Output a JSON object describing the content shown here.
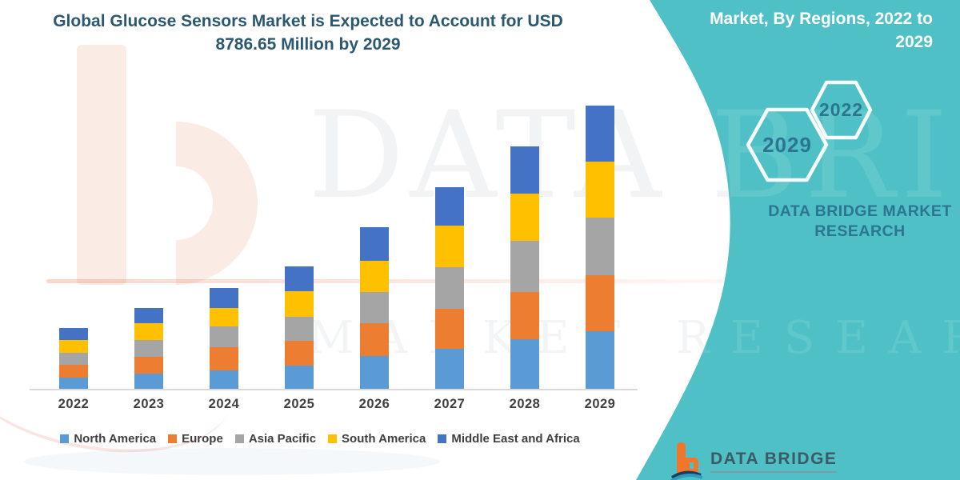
{
  "header": {
    "title_line1": "Global Glucose Sensors Market is Expected to Account for USD",
    "title_line2": "8786.65 Million by 2029"
  },
  "side_panel": {
    "heading": "Market, By Regions, 2022 to 2029",
    "hex_top": "2022",
    "hex_bottom": "2029",
    "brand": "DATA BRIDGE MARKET RESEARCH"
  },
  "watermark": {
    "brand": "DATA BRIDGE",
    "sub": "MARKET RESEARCH"
  },
  "footer": {
    "brand": "DATA BRIDGE"
  },
  "colors": {
    "band": "#4FC1C6",
    "band_text": "#2C7590",
    "title_text": "#2B5871",
    "axis_label": "#3F3F3F",
    "axis_line": "#D9D9D9",
    "logo_orange": "#F0762B"
  },
  "chart_data": {
    "type": "bar",
    "stacked": true,
    "unit": "USD Million",
    "grid": false,
    "legend_position": "bottom",
    "categories": [
      "2022",
      "2023",
      "2024",
      "2025",
      "2026",
      "2027",
      "2028",
      "2029"
    ],
    "series": [
      {
        "name": "North America",
        "color": "#5B9BD5",
        "values": [
          380,
          500,
          600,
          750,
          1050,
          1250,
          1570,
          1797.65
        ]
      },
      {
        "name": "Europe",
        "color": "#ED7D31",
        "values": [
          375,
          525,
          700,
          750,
          1000,
          1250,
          1450,
          1747
        ]
      },
      {
        "name": "Asia Pacific",
        "color": "#A5A5A5",
        "values": [
          375,
          500,
          650,
          750,
          975,
          1270,
          1570,
          1772
        ]
      },
      {
        "name": "South America",
        "color": "#FFC000",
        "values": [
          395,
          520,
          570,
          795,
          970,
          1295,
          1475,
          1722
        ]
      },
      {
        "name": "Middle East and Africa",
        "color": "#4472C4",
        "values": [
          375,
          475,
          625,
          775,
          1025,
          1200,
          1450,
          1748
        ]
      }
    ],
    "estimated_totals": [
      1900,
      2520,
      3145,
      3820,
      5020,
      6265,
      7515,
      8786.65
    ],
    "ylim": [
      0,
      9000
    ]
  }
}
